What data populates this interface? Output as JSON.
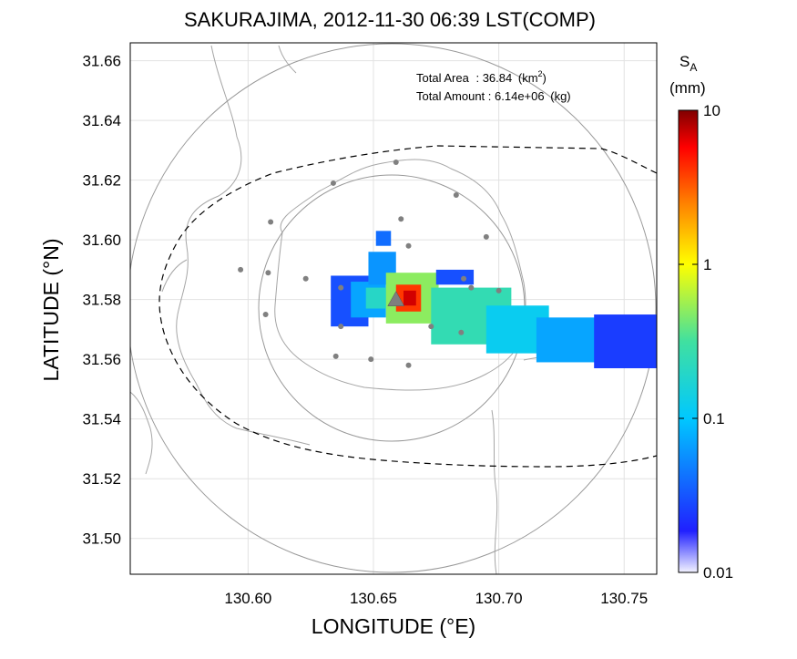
{
  "title": "SAKURAJIMA, 2012-11-30 06:39 LST(COMP)",
  "xlabel": "LONGITUDE (°E)",
  "ylabel": "LATITUDE (°N)",
  "info": {
    "area_label": "Total Area",
    "area_value": "36.84",
    "area_unit_pre": "(km",
    "area_unit_sup": "2",
    "area_unit_post": ")",
    "amount_label": "Total Amount",
    "amount_value": "6.14e+06",
    "amount_unit": "(kg)"
  },
  "colorbar": {
    "label_main": "S",
    "label_sub": "A",
    "unit": "(mm)",
    "ticks": [
      "10",
      "1",
      "0.1",
      "0.01"
    ],
    "scale": "log",
    "range": [
      0.01,
      10
    ]
  },
  "chart_data": {
    "type": "heatmap",
    "xlim": [
      130.553,
      130.763
    ],
    "ylim": [
      31.488,
      31.666
    ],
    "x_ticks": [
      "130.60",
      "130.65",
      "130.70",
      "130.75"
    ],
    "x_tick_values": [
      130.6,
      130.65,
      130.7,
      130.75
    ],
    "y_ticks": [
      "31.66",
      "31.64",
      "31.62",
      "31.60",
      "31.58",
      "31.56",
      "31.54",
      "31.52",
      "31.50"
    ],
    "y_tick_values": [
      31.66,
      31.64,
      31.62,
      31.6,
      31.58,
      31.56,
      31.54,
      31.52,
      31.5
    ],
    "grid": true,
    "vent": {
      "lon": 130.659,
      "lat": 31.58
    },
    "radar_rings_km": [
      4.8,
      9.6
    ],
    "stations": [
      [
        130.659,
        31.626
      ],
      [
        130.634,
        31.619
      ],
      [
        130.683,
        31.615
      ],
      [
        130.609,
        31.606
      ],
      [
        130.661,
        31.607
      ],
      [
        130.695,
        31.601
      ],
      [
        130.664,
        31.598
      ],
      [
        130.597,
        31.59
      ],
      [
        130.608,
        31.589
      ],
      [
        130.623,
        31.587
      ],
      [
        130.637,
        31.584
      ],
      [
        130.686,
        31.587
      ],
      [
        130.689,
        31.584
      ],
      [
        130.7,
        31.583
      ],
      [
        130.607,
        31.575
      ],
      [
        130.637,
        31.571
      ],
      [
        130.673,
        31.571
      ],
      [
        130.685,
        31.569
      ],
      [
        130.635,
        31.561
      ],
      [
        130.649,
        31.56
      ],
      [
        130.664,
        31.558
      ]
    ],
    "ash_deposit": [
      {
        "x0": 130.633,
        "x1": 130.648,
        "y0": 31.571,
        "y1": 31.588,
        "value": 0.03
      },
      {
        "x0": 130.641,
        "x1": 130.655,
        "y0": 31.574,
        "y1": 31.586,
        "value": 0.07
      },
      {
        "x0": 130.647,
        "x1": 130.656,
        "y0": 31.577,
        "y1": 31.584,
        "value": 0.2
      },
      {
        "x0": 130.648,
        "x1": 130.659,
        "y0": 31.585,
        "y1": 31.596,
        "value": 0.06
      },
      {
        "x0": 130.651,
        "x1": 130.657,
        "y0": 31.598,
        "y1": 31.603,
        "value": 0.04
      },
      {
        "x0": 130.655,
        "x1": 130.676,
        "y0": 31.572,
        "y1": 31.589,
        "value": 0.5
      },
      {
        "x0": 130.659,
        "x1": 130.669,
        "y0": 31.576,
        "y1": 31.585,
        "value": 4.0
      },
      {
        "x0": 130.662,
        "x1": 130.667,
        "y0": 31.578,
        "y1": 31.583,
        "value": 7.0
      },
      {
        "x0": 130.675,
        "x1": 130.69,
        "y0": 31.585,
        "y1": 31.59,
        "value": 0.03
      },
      {
        "x0": 130.673,
        "x1": 130.705,
        "y0": 31.565,
        "y1": 31.584,
        "value": 0.25
      },
      {
        "x0": 130.695,
        "x1": 130.72,
        "y0": 31.562,
        "y1": 31.578,
        "value": 0.12
      },
      {
        "x0": 130.715,
        "x1": 130.742,
        "y0": 31.559,
        "y1": 31.574,
        "value": 0.07
      },
      {
        "x0": 130.738,
        "x1": 130.763,
        "y0": 31.557,
        "y1": 31.575,
        "value": 0.025
      }
    ]
  }
}
